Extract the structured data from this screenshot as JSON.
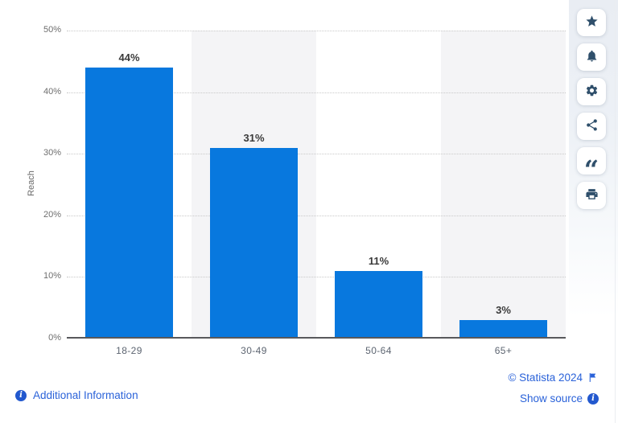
{
  "chart_data": {
    "type": "bar",
    "title": "",
    "categories": [
      "18-29",
      "30-49",
      "50-64",
      "65+"
    ],
    "values": [
      44,
      31,
      11,
      3
    ],
    "value_labels": [
      "44%",
      "31%",
      "11%",
      "3%"
    ],
    "xlabel": "",
    "ylabel": "Reach",
    "ylim": [
      0,
      50
    ],
    "yticks": [
      "50%",
      "40%",
      "30%",
      "20%",
      "10%",
      "0%"
    ],
    "grid": "horizontal-dotted",
    "legend": "none",
    "bar_color": "#0878de",
    "band_colors": [
      "#ffffff",
      "#f4f4f6"
    ]
  },
  "toolbar": {
    "buttons": [
      {
        "id": "favorite",
        "icon": "star-icon"
      },
      {
        "id": "notifications",
        "icon": "bell-icon"
      },
      {
        "id": "settings",
        "icon": "gear-icon"
      },
      {
        "id": "share",
        "icon": "share-icon"
      },
      {
        "id": "cite",
        "icon": "quote-icon"
      },
      {
        "id": "print",
        "icon": "printer-icon"
      }
    ]
  },
  "footer": {
    "additional_info_label": "Additional Information",
    "copyright_label": "© Statista 2024",
    "show_source_label": "Show source"
  },
  "colors": {
    "bar": "#0878de",
    "link": "#2a62d9",
    "toolbar_icon": "#2f4f6b",
    "axis_line": "#58595c",
    "tick_text": "#6e6e6e"
  }
}
